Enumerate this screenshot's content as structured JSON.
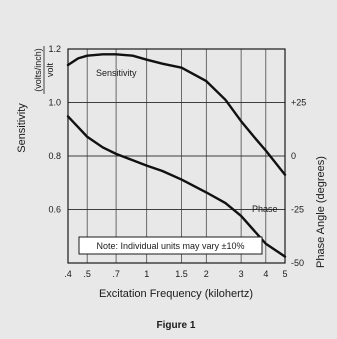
{
  "chart_data": {
    "type": "line",
    "caption": "Figure 1",
    "xlabel": "Excitation Frequency (kilohertz)",
    "x_scale": "log",
    "xlim": [
      0.4,
      5
    ],
    "x_ticks": [
      {
        "value": 0.4,
        "label": ".4"
      },
      {
        "value": 0.5,
        "label": ".5"
      },
      {
        "value": 0.7,
        "label": ".7"
      },
      {
        "value": 1,
        "label": "1"
      },
      {
        "value": 1.5,
        "label": "1.5"
      },
      {
        "value": 2,
        "label": "2"
      },
      {
        "value": 3,
        "label": "3"
      },
      {
        "value": 4,
        "label": "4"
      },
      {
        "value": 5,
        "label": "5"
      }
    ],
    "ylabel_left": {
      "prefix": "Sensitivity",
      "numerator": "(volts/inch)",
      "denominator": "volt"
    },
    "ylim_left": [
      0.4,
      1.2
    ],
    "y_ticks_left": [
      {
        "value": 0.6,
        "label": "0.6"
      },
      {
        "value": 0.8,
        "label": "0.8"
      },
      {
        "value": 1.0,
        "label": "1.0"
      },
      {
        "value": 1.2,
        "label": "1.2"
      }
    ],
    "ylabel_right": "Phase Angle (degrees)",
    "ylim_right": [
      -50,
      50
    ],
    "y_ticks_right": [
      {
        "value": 25,
        "label": "+25"
      },
      {
        "value": 0,
        "label": "0"
      },
      {
        "value": -25,
        "label": "-25"
      },
      {
        "value": -50,
        "label": "-50"
      }
    ],
    "grid": true,
    "note": "Note: Individual units may vary ±10%",
    "series": [
      {
        "name": "Sensitivity",
        "axis": "left",
        "x": [
          0.4,
          0.45,
          0.5,
          0.6,
          0.7,
          0.85,
          1.0,
          1.2,
          1.5,
          2.0,
          2.5,
          3.0,
          3.5,
          4.0,
          5.0
        ],
        "y": [
          1.14,
          1.165,
          1.175,
          1.18,
          1.18,
          1.175,
          1.16,
          1.145,
          1.13,
          1.08,
          1.01,
          0.93,
          0.87,
          0.82,
          0.73
        ]
      },
      {
        "name": "Phase",
        "axis": "right",
        "x": [
          0.4,
          0.5,
          0.6,
          0.7,
          0.85,
          1.0,
          1.2,
          1.5,
          2.0,
          2.5,
          3.0,
          3.5,
          4.0,
          5.0
        ],
        "y": [
          18.5,
          9,
          4,
          1,
          -2,
          -4.5,
          -7,
          -11,
          -17,
          -22,
          -28,
          -35,
          -41,
          -47
        ]
      }
    ]
  }
}
